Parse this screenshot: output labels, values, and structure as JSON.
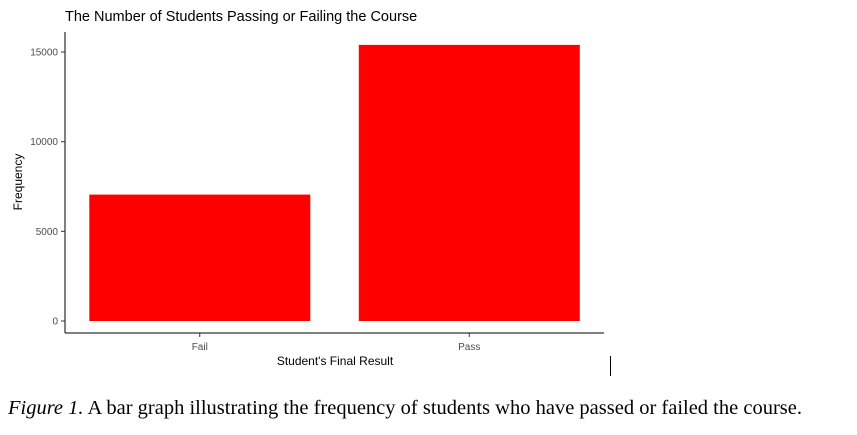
{
  "chart_data": {
    "type": "bar",
    "title": "The Number of Students Passing or Failing the Course",
    "xlabel": "Student's Final Result",
    "ylabel": "Frequency",
    "categories": [
      "Fail",
      "Pass"
    ],
    "values": [
      7050,
      15400
    ],
    "ylim": [
      0,
      15900
    ],
    "yticks": [
      0,
      5000,
      10000,
      15000
    ],
    "bar_color": "#ff0000",
    "grid": false,
    "legend": "none"
  },
  "caption": {
    "label": "Figure 1.",
    "text": "A bar graph illustrating the frequency of students who have passed or failed the course."
  }
}
